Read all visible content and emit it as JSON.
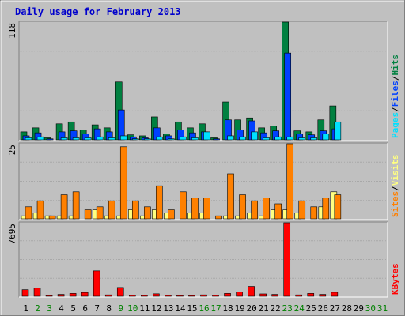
{
  "chart_data": {
    "title": "Daily usage for February 2013",
    "type": "bar",
    "days": [
      "1",
      "2",
      "3",
      "4",
      "5",
      "6",
      "7",
      "8",
      "9",
      "10",
      "11",
      "12",
      "13",
      "14",
      "15",
      "16",
      "17",
      "18",
      "19",
      "20",
      "21",
      "22",
      "23",
      "24",
      "25",
      "26",
      "27",
      "28",
      "29",
      "30",
      "31"
    ],
    "weekend_days": [
      2,
      3,
      9,
      10,
      16,
      17,
      23,
      24,
      30,
      31
    ],
    "day_count_with_data": 28,
    "colors": {
      "hits": "#008040",
      "files": "#0040ff",
      "pages": "#00e0ff",
      "visits": "#ffff80",
      "sites": "#ff8000",
      "kbytes": "#ff0000",
      "weekday_label": "#000000",
      "weekend_label": "#008000",
      "title": "#0000cc"
    },
    "panels": [
      {
        "id": "hits-files-pages",
        "max_label": "118",
        "ylim": [
          0,
          118
        ],
        "side_labels": [
          {
            "text": "Pages",
            "color": "#00e0ff"
          },
          {
            "text": "/",
            "color": "#000000"
          },
          {
            "text": "Files",
            "color": "#0040ff"
          },
          {
            "text": "/",
            "color": "#000000"
          },
          {
            "text": "Hits",
            "color": "#008040"
          }
        ],
        "series": [
          {
            "name": "Hits",
            "color": "#008040",
            "values": [
              8,
              12,
              2,
              16,
              18,
              10,
              15,
              12,
              58,
              5,
              4,
              23,
              6,
              18,
              12,
              16,
              2,
              38,
              20,
              22,
              12,
              14,
              118,
              9,
              8,
              20,
              34,
              0,
              0,
              0,
              0
            ]
          },
          {
            "name": "Files",
            "color": "#0040ff",
            "values": [
              4,
              7,
              1,
              8,
              9,
              6,
              11,
              8,
              30,
              3,
              2,
              12,
              4,
              10,
              7,
              8,
              1,
              20,
              10,
              19,
              7,
              9,
              87,
              6,
              5,
              9,
              11,
              0,
              0,
              0,
              0
            ]
          },
          {
            "name": "Pages",
            "color": "#00e0ff",
            "values": [
              2,
              3,
              0,
              2,
              2,
              2,
              3,
              2,
              4,
              1,
              1,
              3,
              1,
              3,
              2,
              8,
              0,
              4,
              3,
              8,
              2,
              3,
              3,
              2,
              2,
              6,
              18,
              0,
              0,
              0,
              0
            ]
          }
        ]
      },
      {
        "id": "sites-visits",
        "max_label": "25",
        "ylim": [
          0,
          25
        ],
        "side_labels": [
          {
            "text": "Sites",
            "color": "#ff8000"
          },
          {
            "text": "/",
            "color": "#000000"
          },
          {
            "text": "Visits",
            "color": "#ffff80"
          }
        ],
        "series": [
          {
            "name": "Visits",
            "color": "#ffff80",
            "values": [
              1,
              2,
              1,
              1,
              1,
              0,
              3,
              1,
              1,
              3,
              1,
              3,
              2,
              0,
              2,
              2,
              0,
              1,
              1,
              2,
              1,
              3,
              3,
              2,
              0,
              4,
              9,
              0,
              0,
              0,
              0
            ]
          },
          {
            "name": "Sites",
            "color": "#ff8000",
            "values": [
              4,
              6,
              1,
              8,
              9,
              3,
              4,
              6,
              24,
              6,
              4,
              11,
              3,
              9,
              7,
              7,
              1,
              15,
              8,
              6,
              7,
              5,
              25,
              6,
              4,
              7,
              8,
              0,
              0,
              0,
              0
            ]
          }
        ]
      },
      {
        "id": "kbytes",
        "max_label": "7695",
        "ylim": [
          0,
          7695
        ],
        "side_labels": [
          {
            "text": "KBytes",
            "color": "#ff0000"
          }
        ],
        "series": [
          {
            "name": "KBytes",
            "color": "#ff0000",
            "values": [
              690,
              850,
              90,
              200,
              300,
              400,
              2660,
              150,
              920,
              130,
              100,
              260,
              100,
              90,
              90,
              150,
              130,
              300,
              450,
              1030,
              250,
              200,
              7695,
              150,
              300,
              200,
              420,
              0,
              0,
              0,
              0
            ]
          }
        ]
      }
    ]
  }
}
